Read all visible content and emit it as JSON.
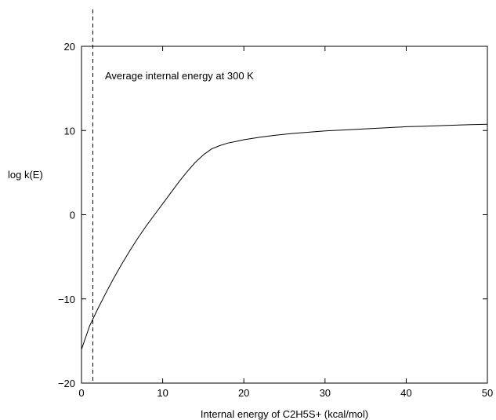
{
  "chart_data": {
    "type": "line",
    "title": "",
    "xlabel": "Internal energy of C2H5S+ (kcal/mol)",
    "ylabel": "log k(E)",
    "xlim": [
      0,
      50
    ],
    "ylim": [
      -20,
      20
    ],
    "x_ticks": [
      0,
      10,
      20,
      30,
      40,
      50
    ],
    "y_ticks": [
      -20,
      -10,
      0,
      10,
      20
    ],
    "x_tick_labels": [
      "0",
      "10",
      "20",
      "30",
      "40",
      "50"
    ],
    "y_tick_labels": [
      "−20",
      "−10",
      "0",
      "10",
      "20"
    ],
    "grid": false,
    "legend": "none",
    "series": [
      {
        "x": [
          0,
          1,
          2,
          3,
          4,
          5,
          6,
          7,
          8,
          9,
          10,
          11,
          12,
          13,
          14,
          15,
          16,
          17,
          18,
          19,
          20,
          22,
          24,
          26,
          28,
          30,
          32,
          35,
          38,
          40,
          42,
          45,
          48,
          50
        ],
        "values": [
          -16,
          -13.2,
          -11.2,
          -9.3,
          -7.5,
          -5.8,
          -4.2,
          -2.7,
          -1.3,
          0,
          1.3,
          2.6,
          3.9,
          5.1,
          6.2,
          7.1,
          7.8,
          8.2,
          8.5,
          8.7,
          8.9,
          9.2,
          9.45,
          9.65,
          9.8,
          9.95,
          10.05,
          10.2,
          10.35,
          10.45,
          10.5,
          10.6,
          10.7,
          10.75
        ],
        "color": "#000000"
      }
    ],
    "reference_line": {
      "x": 1.4,
      "style": "dashed",
      "label": "Average internal energy at 300 K"
    }
  }
}
